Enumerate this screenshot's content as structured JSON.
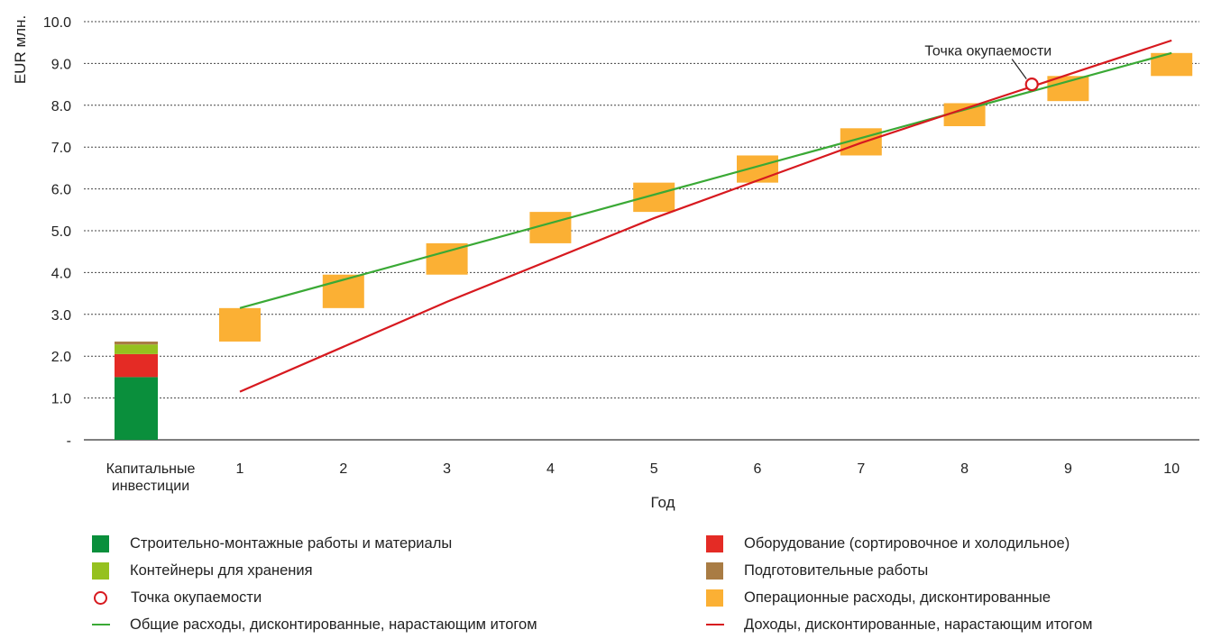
{
  "chart_data": {
    "type": "bar",
    "ylabel": "EUR млн.",
    "xlabel": "Год",
    "ylim": [
      0,
      10
    ],
    "yticks": [
      "-",
      "1.0",
      "2.0",
      "3.0",
      "4.0",
      "5.0",
      "6.0",
      "7.0",
      "8.0",
      "9.0",
      "10.0"
    ],
    "grid": true,
    "categories": [
      "Капитальные инвестиции",
      "1",
      "2",
      "3",
      "4",
      "5",
      "6",
      "7",
      "8",
      "9",
      "10"
    ],
    "capital_investment_stack": [
      {
        "name": "Строительно-монтажные работы и материалы",
        "value": 1.5,
        "color": "#0a8f3c"
      },
      {
        "name": "Оборудование (сортировочное и холодильное)",
        "value": 0.55,
        "color": "#e42b25"
      },
      {
        "name": "Контейнеры для хранения",
        "value": 0.23,
        "color": "#95c11f"
      },
      {
        "name": "Подготовительные работы",
        "value": 0.07,
        "color": "#a97c44"
      }
    ],
    "operating_costs": {
      "name": "Операционные расходы, дисконтированные",
      "color": "#fbb034",
      "x": [
        1,
        2,
        3,
        4,
        5,
        6,
        7,
        8,
        9,
        10
      ],
      "low": [
        2.35,
        3.15,
        3.95,
        4.7,
        5.45,
        6.15,
        6.8,
        7.5,
        8.1,
        8.7
      ],
      "high": [
        3.15,
        3.95,
        4.7,
        5.45,
        6.15,
        6.8,
        7.45,
        8.05,
        8.7,
        9.25
      ]
    },
    "series": [
      {
        "name": "Общие расходы, дисконтированные, нарастающим итогом",
        "color": "#3aa935",
        "x": [
          1,
          10
        ],
        "values": [
          3.15,
          9.25
        ]
      },
      {
        "name": "Доходы, дисконтированные, нарастающим итогом",
        "color": "#d7191f",
        "x": [
          1,
          3,
          5,
          7,
          10
        ],
        "values": [
          1.15,
          3.3,
          5.3,
          7.1,
          9.55
        ]
      }
    ],
    "breakeven": {
      "label": "Точка окупаемости",
      "x": 8.65,
      "y": 8.5,
      "color": "#d7191f"
    }
  },
  "legend": {
    "left": [
      {
        "label": "Строительно-монтажные работы и материалы",
        "kind": "square",
        "color": "#0a8f3c"
      },
      {
        "label": "Контейнеры для хранения",
        "kind": "square",
        "color": "#95c11f"
      },
      {
        "label": "Точка окупаемости",
        "kind": "circle",
        "color": "#d7191f"
      },
      {
        "label": "Общие расходы, дисконтированные, нарастающим итогом",
        "kind": "line",
        "color": "#3aa935"
      }
    ],
    "right": [
      {
        "label": "Оборудование (сортировочное и холодильное)",
        "kind": "square",
        "color": "#e42b25"
      },
      {
        "label": "Подготовительные работы",
        "kind": "square",
        "color": "#a97c44"
      },
      {
        "label": "Операционные расходы, дисконтированные",
        "kind": "square",
        "color": "#fbb034"
      },
      {
        "label": "Доходы, дисконтированные, нарастающим итогом",
        "kind": "line",
        "color": "#d7191f"
      }
    ]
  }
}
